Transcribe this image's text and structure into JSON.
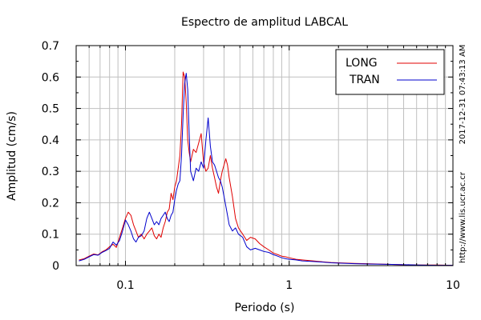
{
  "chart_data": {
    "type": "line",
    "title": "Espectro de amplitud LABCAL",
    "xlabel": "Periodo (s)",
    "ylabel": "Amplitud (cm/s)",
    "x_scale": "log",
    "xlim": [
      0.05,
      10
    ],
    "ylim": [
      0,
      0.7
    ],
    "x_tick_labels": [
      {
        "value": 0.1,
        "label": "0.1"
      },
      {
        "value": 1,
        "label": "1"
      },
      {
        "value": 10,
        "label": "10"
      }
    ],
    "y_tick_labels": [
      {
        "value": 0,
        "label": "0"
      },
      {
        "value": 0.1,
        "label": "0.1"
      },
      {
        "value": 0.2,
        "label": "0.2"
      },
      {
        "value": 0.3,
        "label": "0.3"
      },
      {
        "value": 0.4,
        "label": "0.4"
      },
      {
        "value": 0.5,
        "label": "0.5"
      },
      {
        "value": 0.6,
        "label": "0.6"
      },
      {
        "value": 0.7,
        "label": "0.7"
      }
    ],
    "grid": true,
    "legend_position": "top-right",
    "series": [
      {
        "name": "LONG",
        "color": "#e00000",
        "points": [
          [
            0.052,
            0.018
          ],
          [
            0.056,
            0.022
          ],
          [
            0.06,
            0.03
          ],
          [
            0.064,
            0.037
          ],
          [
            0.068,
            0.034
          ],
          [
            0.072,
            0.044
          ],
          [
            0.076,
            0.05
          ],
          [
            0.08,
            0.06
          ],
          [
            0.084,
            0.068
          ],
          [
            0.088,
            0.058
          ],
          [
            0.092,
            0.09
          ],
          [
            0.096,
            0.12
          ],
          [
            0.1,
            0.15
          ],
          [
            0.104,
            0.17
          ],
          [
            0.108,
            0.16
          ],
          [
            0.112,
            0.13
          ],
          [
            0.116,
            0.11
          ],
          [
            0.12,
            0.09
          ],
          [
            0.125,
            0.1
          ],
          [
            0.13,
            0.085
          ],
          [
            0.135,
            0.1
          ],
          [
            0.14,
            0.11
          ],
          [
            0.145,
            0.12
          ],
          [
            0.15,
            0.095
          ],
          [
            0.155,
            0.085
          ],
          [
            0.16,
            0.1
          ],
          [
            0.165,
            0.09
          ],
          [
            0.17,
            0.12
          ],
          [
            0.175,
            0.14
          ],
          [
            0.18,
            0.17
          ],
          [
            0.185,
            0.18
          ],
          [
            0.19,
            0.23
          ],
          [
            0.195,
            0.21
          ],
          [
            0.2,
            0.25
          ],
          [
            0.205,
            0.27
          ],
          [
            0.21,
            0.31
          ],
          [
            0.215,
            0.35
          ],
          [
            0.22,
            0.45
          ],
          [
            0.225,
            0.616
          ],
          [
            0.23,
            0.6
          ],
          [
            0.235,
            0.52
          ],
          [
            0.24,
            0.4
          ],
          [
            0.245,
            0.36
          ],
          [
            0.25,
            0.33
          ],
          [
            0.26,
            0.37
          ],
          [
            0.27,
            0.36
          ],
          [
            0.28,
            0.39
          ],
          [
            0.29,
            0.42
          ],
          [
            0.3,
            0.33
          ],
          [
            0.31,
            0.3
          ],
          [
            0.32,
            0.31
          ],
          [
            0.33,
            0.35
          ],
          [
            0.34,
            0.31
          ],
          [
            0.35,
            0.28
          ],
          [
            0.36,
            0.25
          ],
          [
            0.37,
            0.23
          ],
          [
            0.38,
            0.27
          ],
          [
            0.39,
            0.3
          ],
          [
            0.4,
            0.32
          ],
          [
            0.41,
            0.34
          ],
          [
            0.42,
            0.32
          ],
          [
            0.43,
            0.28
          ],
          [
            0.45,
            0.22
          ],
          [
            0.47,
            0.15
          ],
          [
            0.49,
            0.12
          ],
          [
            0.52,
            0.1
          ],
          [
            0.55,
            0.08
          ],
          [
            0.58,
            0.09
          ],
          [
            0.62,
            0.085
          ],
          [
            0.66,
            0.07
          ],
          [
            0.7,
            0.06
          ],
          [
            0.75,
            0.05
          ],
          [
            0.8,
            0.04
          ],
          [
            0.85,
            0.035
          ],
          [
            0.9,
            0.03
          ],
          [
            0.95,
            0.028
          ],
          [
            1.0,
            0.025
          ],
          [
            1.1,
            0.02
          ],
          [
            1.2,
            0.018
          ],
          [
            1.4,
            0.015
          ],
          [
            1.6,
            0.012
          ],
          [
            1.8,
            0.01
          ],
          [
            2.0,
            0.009
          ],
          [
            2.5,
            0.007
          ],
          [
            3.0,
            0.006
          ],
          [
            4.0,
            0.004
          ],
          [
            5.0,
            0.003
          ],
          [
            6.0,
            0.002
          ],
          [
            8.0,
            0.002
          ],
          [
            10.0,
            0.001
          ]
        ]
      },
      {
        "name": "TRAN",
        "color": "#0000cc",
        "points": [
          [
            0.052,
            0.015
          ],
          [
            0.056,
            0.02
          ],
          [
            0.06,
            0.028
          ],
          [
            0.064,
            0.035
          ],
          [
            0.068,
            0.033
          ],
          [
            0.072,
            0.042
          ],
          [
            0.076,
            0.048
          ],
          [
            0.08,
            0.055
          ],
          [
            0.084,
            0.075
          ],
          [
            0.088,
            0.065
          ],
          [
            0.092,
            0.08
          ],
          [
            0.096,
            0.11
          ],
          [
            0.1,
            0.145
          ],
          [
            0.104,
            0.13
          ],
          [
            0.108,
            0.11
          ],
          [
            0.112,
            0.085
          ],
          [
            0.116,
            0.075
          ],
          [
            0.12,
            0.09
          ],
          [
            0.125,
            0.095
          ],
          [
            0.13,
            0.11
          ],
          [
            0.135,
            0.15
          ],
          [
            0.14,
            0.17
          ],
          [
            0.145,
            0.15
          ],
          [
            0.15,
            0.13
          ],
          [
            0.155,
            0.14
          ],
          [
            0.16,
            0.13
          ],
          [
            0.165,
            0.15
          ],
          [
            0.17,
            0.16
          ],
          [
            0.175,
            0.17
          ],
          [
            0.18,
            0.15
          ],
          [
            0.185,
            0.14
          ],
          [
            0.19,
            0.16
          ],
          [
            0.195,
            0.17
          ],
          [
            0.2,
            0.21
          ],
          [
            0.205,
            0.24
          ],
          [
            0.21,
            0.26
          ],
          [
            0.215,
            0.27
          ],
          [
            0.22,
            0.35
          ],
          [
            0.225,
            0.48
          ],
          [
            0.23,
            0.58
          ],
          [
            0.235,
            0.612
          ],
          [
            0.24,
            0.56
          ],
          [
            0.245,
            0.42
          ],
          [
            0.25,
            0.3
          ],
          [
            0.26,
            0.27
          ],
          [
            0.27,
            0.31
          ],
          [
            0.28,
            0.3
          ],
          [
            0.29,
            0.33
          ],
          [
            0.3,
            0.31
          ],
          [
            0.31,
            0.4
          ],
          [
            0.32,
            0.47
          ],
          [
            0.33,
            0.38
          ],
          [
            0.34,
            0.33
          ],
          [
            0.35,
            0.32
          ],
          [
            0.36,
            0.3
          ],
          [
            0.37,
            0.28
          ],
          [
            0.38,
            0.27
          ],
          [
            0.39,
            0.25
          ],
          [
            0.4,
            0.22
          ],
          [
            0.41,
            0.19
          ],
          [
            0.42,
            0.16
          ],
          [
            0.43,
            0.13
          ],
          [
            0.45,
            0.11
          ],
          [
            0.47,
            0.12
          ],
          [
            0.49,
            0.1
          ],
          [
            0.52,
            0.09
          ],
          [
            0.55,
            0.06
          ],
          [
            0.58,
            0.05
          ],
          [
            0.62,
            0.055
          ],
          [
            0.66,
            0.05
          ],
          [
            0.7,
            0.045
          ],
          [
            0.75,
            0.042
          ],
          [
            0.8,
            0.035
          ],
          [
            0.85,
            0.03
          ],
          [
            0.9,
            0.025
          ],
          [
            0.95,
            0.022
          ],
          [
            1.0,
            0.02
          ],
          [
            1.1,
            0.018
          ],
          [
            1.2,
            0.015
          ],
          [
            1.4,
            0.013
          ],
          [
            1.6,
            0.011
          ],
          [
            1.8,
            0.009
          ],
          [
            2.0,
            0.008
          ],
          [
            2.5,
            0.006
          ],
          [
            3.0,
            0.005
          ],
          [
            4.0,
            0.004
          ],
          [
            5.0,
            0.003
          ],
          [
            6.0,
            0.002
          ],
          [
            8.0,
            0.001
          ],
          [
            10.0,
            0.001
          ]
        ]
      }
    ]
  },
  "side_labels": {
    "timestamp": "2017-12-31 07:43:13 AM",
    "url": "http://www.lis.ucr.ac.cr"
  },
  "colors": {
    "grid": "#c0c0c0",
    "frame": "#000000"
  }
}
